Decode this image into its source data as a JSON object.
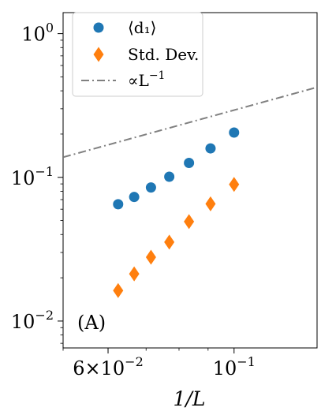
{
  "chart_data": {
    "type": "scatter",
    "xscale": "log",
    "yscale": "log",
    "xlim": [
      0.05,
      0.14
    ],
    "ylim": [
      0.0065,
      1.4
    ],
    "xlabel": "1/L",
    "ylabel": "",
    "title": "",
    "panel_label": "(A)",
    "grid": false,
    "legend_position": "top-left",
    "x_ticks": [
      {
        "value": 0.06,
        "mantissa": "6×10",
        "exponent": "−2"
      },
      {
        "value": 0.1,
        "mantissa": "10",
        "exponent": "−1"
      }
    ],
    "y_ticks": [
      {
        "value": 0.01,
        "mantissa": "10",
        "exponent": "−2"
      },
      {
        "value": 0.1,
        "mantissa": "10",
        "exponent": "−1"
      },
      {
        "value": 1,
        "mantissa": "10",
        "exponent": "0"
      }
    ],
    "series": [
      {
        "name": "⟨d₁⟩",
        "marker": "circle",
        "color": "#1f77b4",
        "x": [
          0.0625,
          0.0667,
          0.0714,
          0.0769,
          0.0833,
          0.0909,
          0.1
        ],
        "y": [
          0.065,
          0.073,
          0.085,
          0.101,
          0.126,
          0.159,
          0.205
        ]
      },
      {
        "name": "Std. Dev.",
        "marker": "diamond",
        "color": "#ff7f0e",
        "x": [
          0.0625,
          0.0667,
          0.0714,
          0.0769,
          0.0833,
          0.0909,
          0.1
        ],
        "y": [
          0.0163,
          0.0213,
          0.0278,
          0.0354,
          0.0492,
          0.0654,
          0.0892
        ]
      },
      {
        "name": "∝L",
        "name_superscript": "−1",
        "marker": "line",
        "linestyle": "dashdot",
        "color": "#808080",
        "x": [
          0.05,
          0.14
        ],
        "y": [
          0.138,
          0.4236
        ]
      }
    ]
  }
}
